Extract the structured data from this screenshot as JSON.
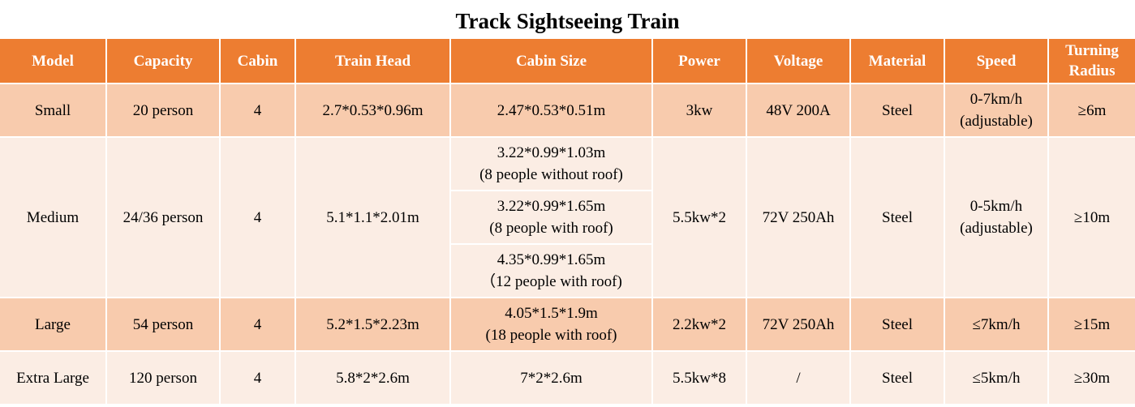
{
  "title": "Track Sightseeing Train",
  "table": {
    "header": [
      "Model",
      "Capacity",
      "Cabin",
      "Train Head",
      "Cabin Size",
      "Power",
      "Voltage",
      "Material",
      "Speed",
      "Turning Radius"
    ],
    "rows": [
      [
        "Small",
        "20 person",
        "4",
        "2.7*0.53*0.96m",
        "2.47*0.53*0.51m",
        "3kw",
        "48V 200A",
        "Steel",
        "0-7km/h\n(adjustable)",
        "≥6m"
      ],
      [
        "Medium",
        "24/36 person",
        "4",
        "5.1*1.1*2.01m",
        [
          "3.22*0.99*1.03m\n(8 people without roof)",
          "3.22*0.99*1.65m\n(8 people with roof)",
          "4.35*0.99*1.65m\n（12 people with roof)"
        ],
        "5.5kw*2",
        "72V 250Ah",
        "Steel",
        "0-5km/h\n(adjustable)",
        "≥10m"
      ],
      [
        "Large",
        "54 person",
        "4",
        "5.2*1.5*2.23m",
        "4.05*1.5*1.9m\n(18 people with roof)",
        "2.2kw*2",
        "72V 250Ah",
        "Steel",
        "≤7km/h",
        "≥15m"
      ],
      [
        "Extra Large",
        "120 person",
        "4",
        "5.8*2*2.6m",
        "7*2*2.6m",
        "5.5kw*8",
        "/",
        "Steel",
        "≤5km/h",
        "≥30m"
      ]
    ]
  }
}
